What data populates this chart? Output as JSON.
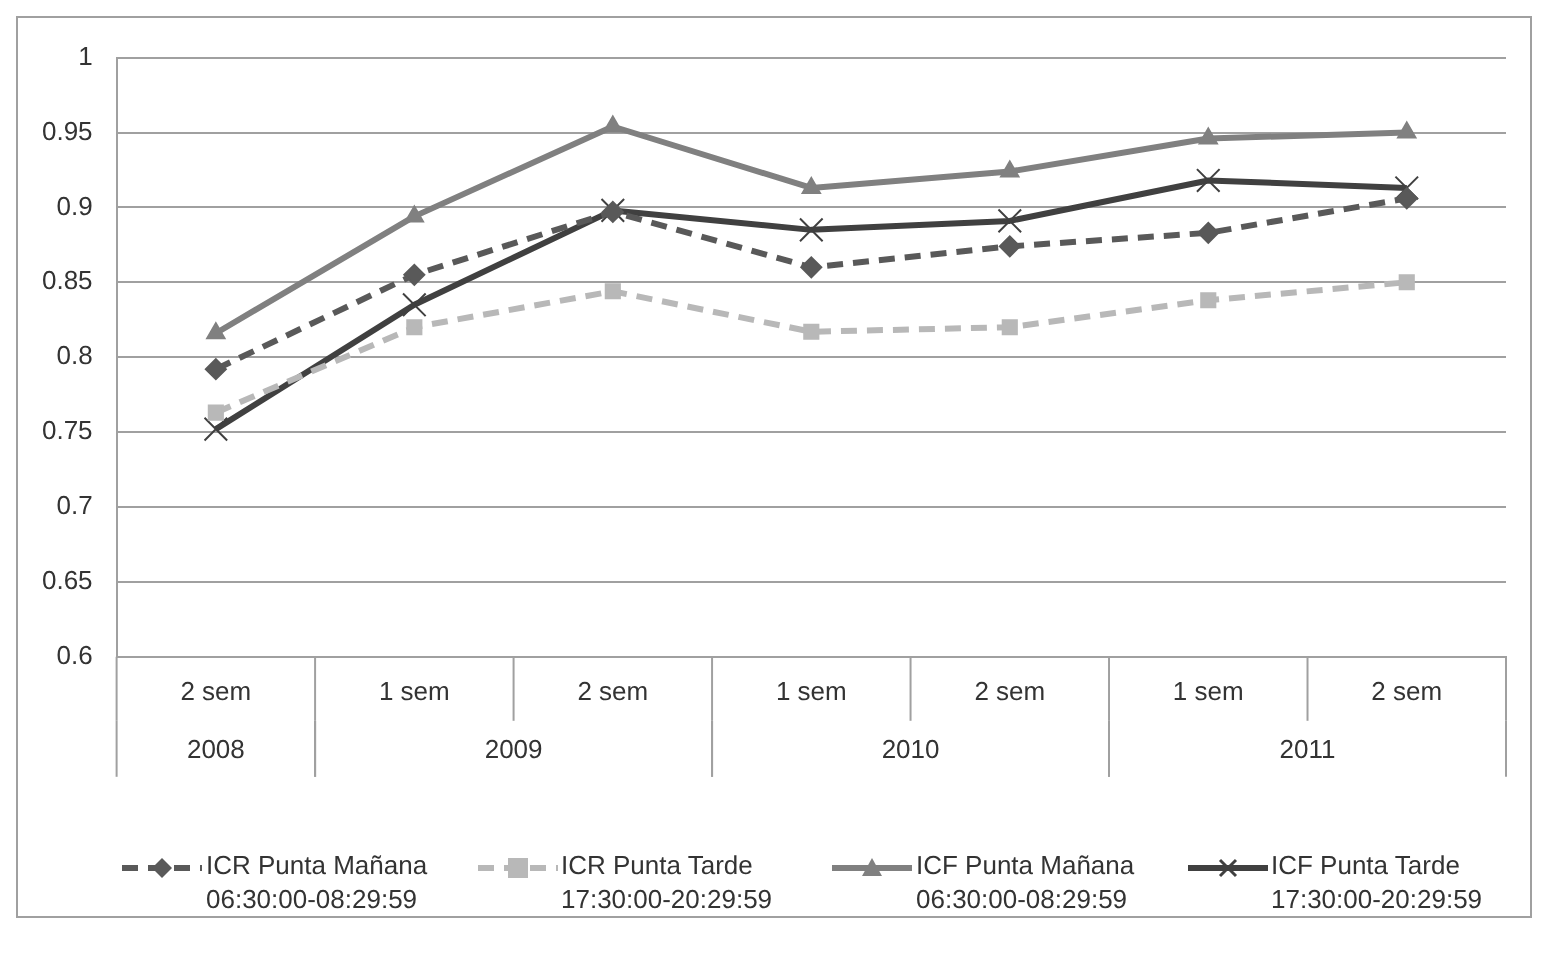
{
  "chart_data": {
    "type": "line",
    "categories": [
      "2 sem",
      "1 sem",
      "2 sem",
      "1 sem",
      "2 sem",
      "1 sem",
      "2 sem"
    ],
    "annotations": [
      "2008",
      "2009",
      "2010",
      "2011"
    ],
    "series": [
      {
        "name": "ICR Punta Mañana 06:30:00-08:29:59",
        "color": "#595959",
        "marker": "diamond",
        "line_style": "dashed",
        "values": [
          0.792,
          0.855,
          0.897,
          0.86,
          0.874,
          0.883,
          0.906
        ]
      },
      {
        "name": "ICR Punta Tarde 17:30:00-20:29:59",
        "color": "#b8b8b8",
        "marker": "square",
        "line_style": "dashed",
        "values": [
          0.763,
          0.82,
          0.844,
          0.817,
          0.82,
          0.838,
          0.85
        ]
      },
      {
        "name": "ICF Punta Mañana 06:30:00-08:29:59",
        "color": "#808080",
        "marker": "triangle",
        "line_style": "solid",
        "values": [
          0.816,
          0.894,
          0.954,
          0.913,
          0.924,
          0.946,
          0.95
        ]
      },
      {
        "name": "ICF Punta Tarde 17:30:00-20:29:59",
        "color": "#404040",
        "marker": "cross",
        "line_style": "solid",
        "values": [
          0.752,
          0.835,
          0.898,
          0.885,
          0.891,
          0.918,
          0.913
        ]
      }
    ],
    "ylim": [
      0.6,
      1
    ],
    "yticks": [
      0.6,
      0.65,
      0.7,
      0.75,
      0.8,
      0.85,
      0.9,
      0.95,
      1
    ],
    "grid": "y",
    "legend": "bottom"
  }
}
